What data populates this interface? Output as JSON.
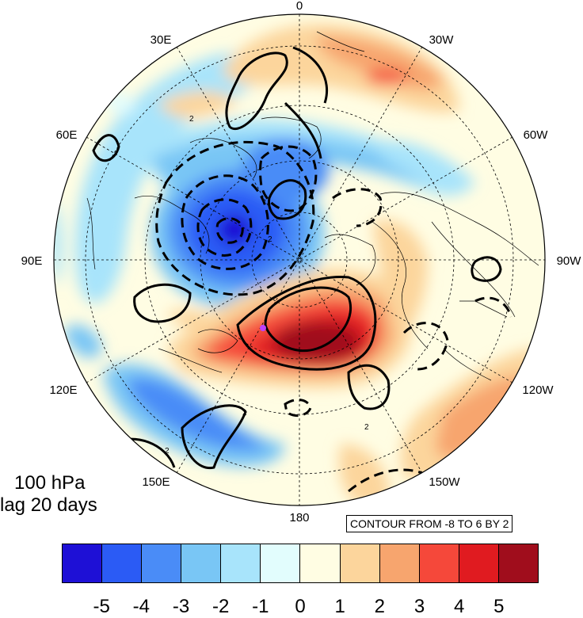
{
  "map": {
    "projection": "polar stereographic, North Pole",
    "longitude_labels": [
      "0",
      "30W",
      "60W",
      "90W",
      "120W",
      "150W",
      "180",
      "150E",
      "120E",
      "90E",
      "60E",
      "30E"
    ],
    "marker_color": "#c040ff",
    "features": {
      "shading": "filled anomaly field",
      "contours": "black lines, dashed negative",
      "grid": "dashed lat/lon graticule",
      "coastlines": "thin black"
    },
    "contour_labels": [
      "2",
      "2",
      "2",
      "2",
      "2"
    ]
  },
  "panel": {
    "level": "100 hPa",
    "lag": "lag 20 days"
  },
  "contour_info": "CONTOUR FROM -8 TO 6 BY 2",
  "colorbar": {
    "colors": [
      "#1e10d6",
      "#2b5bf5",
      "#4a8cf7",
      "#79c6f5",
      "#a8e4fb",
      "#e2fdfd",
      "#fffde3",
      "#fcd59c",
      "#f7a56e",
      "#f5483a",
      "#e01b20",
      "#a00d1c"
    ],
    "labels": [
      "-5",
      "-4",
      "-3",
      "-2",
      "-1",
      "0",
      "1",
      "2",
      "3",
      "4",
      "5"
    ]
  }
}
